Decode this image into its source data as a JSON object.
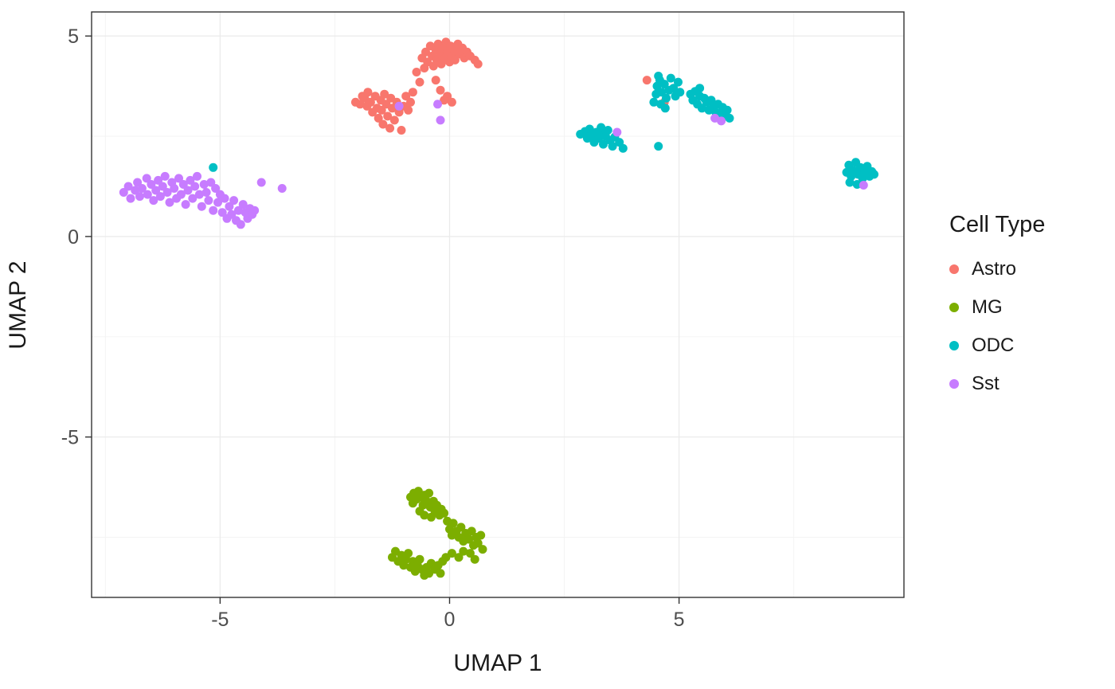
{
  "chart_data": {
    "type": "scatter",
    "title": "",
    "xlabel": "UMAP 1",
    "ylabel": "UMAP 2",
    "xlim": [
      -7.8,
      9.9
    ],
    "ylim": [
      -9.0,
      5.6
    ],
    "x_ticks": [
      -5,
      0,
      5
    ],
    "y_ticks": [
      -5,
      0,
      5
    ],
    "x_minor": [
      -7.5,
      -2.5,
      2.5,
      7.5
    ],
    "y_minor": [
      -7.5,
      -2.5,
      2.5
    ],
    "grid": true,
    "legend_title": "Cell Type",
    "legend_position": "right",
    "point_radius": 5.5,
    "colors": {
      "major_grid": "#ebebeb",
      "minor_grid": "#f3f3f3",
      "panel_border": "#333333",
      "tick_mark": "#333333",
      "tick_label": "#4d4d4d"
    },
    "series": [
      {
        "name": "Astro",
        "color": "#F8766D",
        "points": [
          [
            -2.05,
            3.35
          ],
          [
            -1.95,
            3.3
          ],
          [
            -1.9,
            3.5
          ],
          [
            -1.85,
            3.45
          ],
          [
            -1.8,
            3.25
          ],
          [
            -1.78,
            3.6
          ],
          [
            -1.72,
            3.35
          ],
          [
            -1.68,
            3.1
          ],
          [
            -1.62,
            3.5
          ],
          [
            -1.58,
            3.2
          ],
          [
            -1.55,
            2.95
          ],
          [
            -1.5,
            3.4
          ],
          [
            -1.48,
            3.15
          ],
          [
            -1.45,
            2.8
          ],
          [
            -1.42,
            3.55
          ],
          [
            -1.38,
            3.3
          ],
          [
            -1.35,
            3.0
          ],
          [
            -1.3,
            2.7
          ],
          [
            -1.28,
            3.45
          ],
          [
            -1.25,
            3.2
          ],
          [
            -1.2,
            2.9
          ],
          [
            -1.15,
            3.35
          ],
          [
            -1.1,
            3.1
          ],
          [
            -1.05,
            2.65
          ],
          [
            -1.0,
            3.25
          ],
          [
            -0.95,
            3.5
          ],
          [
            -0.9,
            3.15
          ],
          [
            -0.85,
            3.35
          ],
          [
            -0.8,
            3.6
          ],
          [
            -0.72,
            4.1
          ],
          [
            -0.65,
            3.85
          ],
          [
            -0.6,
            4.45
          ],
          [
            -0.55,
            4.2
          ],
          [
            -0.52,
            4.6
          ],
          [
            -0.48,
            4.35
          ],
          [
            -0.42,
            4.75
          ],
          [
            -0.38,
            4.5
          ],
          [
            -0.35,
            4.25
          ],
          [
            -0.3,
            4.65
          ],
          [
            -0.28,
            4.4
          ],
          [
            -0.25,
            4.8
          ],
          [
            -0.2,
            4.55
          ],
          [
            -0.18,
            4.3
          ],
          [
            -0.15,
            4.7
          ],
          [
            -0.1,
            4.45
          ],
          [
            -0.08,
            4.85
          ],
          [
            -0.05,
            4.6
          ],
          [
            0.0,
            4.35
          ],
          [
            0.02,
            4.75
          ],
          [
            0.05,
            4.5
          ],
          [
            0.1,
            4.65
          ],
          [
            0.12,
            4.4
          ],
          [
            0.18,
            4.8
          ],
          [
            0.22,
            4.55
          ],
          [
            0.28,
            4.7
          ],
          [
            0.32,
            4.45
          ],
          [
            0.38,
            4.6
          ],
          [
            0.45,
            4.5
          ],
          [
            0.55,
            4.4
          ],
          [
            0.62,
            4.3
          ],
          [
            -0.3,
            3.9
          ],
          [
            -0.2,
            3.65
          ],
          [
            -0.12,
            3.4
          ],
          [
            -0.05,
            3.5
          ],
          [
            0.05,
            3.35
          ],
          [
            4.3,
            3.9
          ],
          [
            4.68,
            3.35
          ]
        ]
      },
      {
        "name": "MG",
        "color": "#7CAE00",
        "points": [
          [
            -0.85,
            -6.5
          ],
          [
            -0.8,
            -6.65
          ],
          [
            -0.78,
            -6.4
          ],
          [
            -0.72,
            -6.55
          ],
          [
            -0.68,
            -6.35
          ],
          [
            -0.62,
            -6.5
          ],
          [
            -0.58,
            -6.7
          ],
          [
            -0.55,
            -6.45
          ],
          [
            -0.5,
            -6.6
          ],
          [
            -0.45,
            -6.4
          ],
          [
            -0.42,
            -6.75
          ],
          [
            -0.35,
            -6.6
          ],
          [
            -0.32,
            -6.85
          ],
          [
            -0.28,
            -6.7
          ],
          [
            -0.22,
            -6.95
          ],
          [
            -0.18,
            -6.8
          ],
          [
            -0.12,
            -6.9
          ],
          [
            -0.4,
            -7.0
          ],
          [
            -0.55,
            -6.95
          ],
          [
            -0.65,
            -6.85
          ],
          [
            -0.05,
            -7.1
          ],
          [
            0.0,
            -7.3
          ],
          [
            0.08,
            -7.15
          ],
          [
            0.05,
            -7.45
          ],
          [
            0.15,
            -7.35
          ],
          [
            0.2,
            -7.5
          ],
          [
            0.25,
            -7.25
          ],
          [
            0.3,
            -7.6
          ],
          [
            0.35,
            -7.4
          ],
          [
            0.42,
            -7.55
          ],
          [
            0.48,
            -7.35
          ],
          [
            0.52,
            -7.7
          ],
          [
            0.58,
            -7.5
          ],
          [
            0.62,
            -7.65
          ],
          [
            0.68,
            -7.45
          ],
          [
            0.72,
            -7.8
          ],
          [
            0.45,
            -7.9
          ],
          [
            0.3,
            -7.85
          ],
          [
            0.55,
            -8.05
          ],
          [
            0.2,
            -8.0
          ],
          [
            0.05,
            -7.9
          ],
          [
            -1.25,
            -8.0
          ],
          [
            -1.18,
            -7.85
          ],
          [
            -1.12,
            -8.1
          ],
          [
            -1.05,
            -7.95
          ],
          [
            -1.0,
            -8.2
          ],
          [
            -0.95,
            -8.05
          ],
          [
            -0.9,
            -7.9
          ],
          [
            -0.85,
            -8.25
          ],
          [
            -0.8,
            -8.1
          ],
          [
            -0.75,
            -8.35
          ],
          [
            -0.7,
            -8.2
          ],
          [
            -0.65,
            -8.05
          ],
          [
            -0.6,
            -8.3
          ],
          [
            -0.55,
            -8.45
          ],
          [
            -0.5,
            -8.25
          ],
          [
            -0.45,
            -8.4
          ],
          [
            -0.4,
            -8.15
          ],
          [
            -0.32,
            -8.3
          ],
          [
            -0.25,
            -8.2
          ],
          [
            -0.15,
            -8.1
          ],
          [
            -0.08,
            -8.0
          ],
          [
            -0.2,
            -8.4
          ]
        ]
      },
      {
        "name": "ODC",
        "color": "#00BFC4",
        "points": [
          [
            2.85,
            2.55
          ],
          [
            2.95,
            2.62
          ],
          [
            3.0,
            2.45
          ],
          [
            3.05,
            2.68
          ],
          [
            3.1,
            2.52
          ],
          [
            3.15,
            2.35
          ],
          [
            3.2,
            2.6
          ],
          [
            3.25,
            2.45
          ],
          [
            3.3,
            2.55
          ],
          [
            3.35,
            2.3
          ],
          [
            3.4,
            2.5
          ],
          [
            3.45,
            2.65
          ],
          [
            3.5,
            2.4
          ],
          [
            3.55,
            2.25
          ],
          [
            3.6,
            2.48
          ],
          [
            3.7,
            2.35
          ],
          [
            3.78,
            2.2
          ],
          [
            3.3,
            2.72
          ],
          [
            4.55,
            2.25
          ],
          [
            4.45,
            3.35
          ],
          [
            4.5,
            3.55
          ],
          [
            4.52,
            3.75
          ],
          [
            4.58,
            3.9
          ],
          [
            4.62,
            3.6
          ],
          [
            4.68,
            3.8
          ],
          [
            4.72,
            3.45
          ],
          [
            4.78,
            3.65
          ],
          [
            4.82,
            3.95
          ],
          [
            4.88,
            3.7
          ],
          [
            4.92,
            3.5
          ],
          [
            4.98,
            3.85
          ],
          [
            5.02,
            3.6
          ],
          [
            4.6,
            3.3
          ],
          [
            4.7,
            3.2
          ],
          [
            4.55,
            4.0
          ],
          [
            5.25,
            3.55
          ],
          [
            5.3,
            3.4
          ],
          [
            5.35,
            3.62
          ],
          [
            5.4,
            3.3
          ],
          [
            5.45,
            3.5
          ],
          [
            5.5,
            3.2
          ],
          [
            5.55,
            3.45
          ],
          [
            5.6,
            3.35
          ],
          [
            5.65,
            3.15
          ],
          [
            5.7,
            3.4
          ],
          [
            5.75,
            3.28
          ],
          [
            5.8,
            3.1
          ],
          [
            5.85,
            3.3
          ],
          [
            5.9,
            3.05
          ],
          [
            5.95,
            3.22
          ],
          [
            6.0,
            3.0
          ],
          [
            6.05,
            3.15
          ],
          [
            6.1,
            2.95
          ],
          [
            5.45,
            3.7
          ],
          [
            8.65,
            1.6
          ],
          [
            8.7,
            1.78
          ],
          [
            8.75,
            1.5
          ],
          [
            8.8,
            1.65
          ],
          [
            8.85,
            1.85
          ],
          [
            8.9,
            1.55
          ],
          [
            8.95,
            1.72
          ],
          [
            9.0,
            1.45
          ],
          [
            9.05,
            1.62
          ],
          [
            9.1,
            1.75
          ],
          [
            9.15,
            1.5
          ],
          [
            9.2,
            1.62
          ],
          [
            8.72,
            1.35
          ],
          [
            8.88,
            1.3
          ],
          [
            9.25,
            1.55
          ],
          [
            -5.15,
            1.72
          ]
        ]
      },
      {
        "name": "Sst",
        "color": "#C77CFF",
        "points": [
          [
            -7.1,
            1.1
          ],
          [
            -7.0,
            1.25
          ],
          [
            -6.95,
            0.95
          ],
          [
            -6.85,
            1.15
          ],
          [
            -6.8,
            1.35
          ],
          [
            -6.75,
            1.0
          ],
          [
            -6.7,
            1.2
          ],
          [
            -6.6,
            1.45
          ],
          [
            -6.58,
            1.05
          ],
          [
            -6.5,
            1.3
          ],
          [
            -6.45,
            0.9
          ],
          [
            -6.4,
            1.15
          ],
          [
            -6.35,
            1.4
          ],
          [
            -6.3,
            1.0
          ],
          [
            -6.25,
            1.25
          ],
          [
            -6.2,
            1.5
          ],
          [
            -6.15,
            1.1
          ],
          [
            -6.1,
            0.85
          ],
          [
            -6.05,
            1.35
          ],
          [
            -6.0,
            1.2
          ],
          [
            -5.95,
            0.95
          ],
          [
            -5.9,
            1.45
          ],
          [
            -5.85,
            1.05
          ],
          [
            -5.8,
            1.3
          ],
          [
            -5.75,
            0.8
          ],
          [
            -5.7,
            1.15
          ],
          [
            -5.65,
            1.4
          ],
          [
            -5.6,
            0.95
          ],
          [
            -5.55,
            1.25
          ],
          [
            -5.5,
            1.5
          ],
          [
            -5.45,
            1.05
          ],
          [
            -5.4,
            0.75
          ],
          [
            -5.35,
            1.3
          ],
          [
            -5.3,
            1.1
          ],
          [
            -5.25,
            0.9
          ],
          [
            -5.2,
            1.35
          ],
          [
            -5.15,
            0.65
          ],
          [
            -5.1,
            1.2
          ],
          [
            -5.05,
            0.85
          ],
          [
            -5.0,
            1.05
          ],
          [
            -4.95,
            0.6
          ],
          [
            -4.9,
            0.95
          ],
          [
            -4.85,
            0.45
          ],
          [
            -4.8,
            0.75
          ],
          [
            -4.75,
            0.55
          ],
          [
            -4.7,
            0.9
          ],
          [
            -4.65,
            0.4
          ],
          [
            -4.6,
            0.65
          ],
          [
            -4.55,
            0.3
          ],
          [
            -4.5,
            0.8
          ],
          [
            -4.45,
            0.6
          ],
          [
            -4.4,
            0.45
          ],
          [
            -4.35,
            0.7
          ],
          [
            -4.3,
            0.55
          ],
          [
            -4.25,
            0.65
          ],
          [
            -4.1,
            1.35
          ],
          [
            -3.65,
            1.2
          ],
          [
            -1.1,
            3.25
          ],
          [
            -0.26,
            3.3
          ],
          [
            -0.2,
            2.9
          ],
          [
            3.65,
            2.6
          ],
          [
            5.78,
            2.95
          ],
          [
            5.92,
            2.88
          ],
          [
            9.02,
            1.28
          ]
        ]
      }
    ]
  }
}
